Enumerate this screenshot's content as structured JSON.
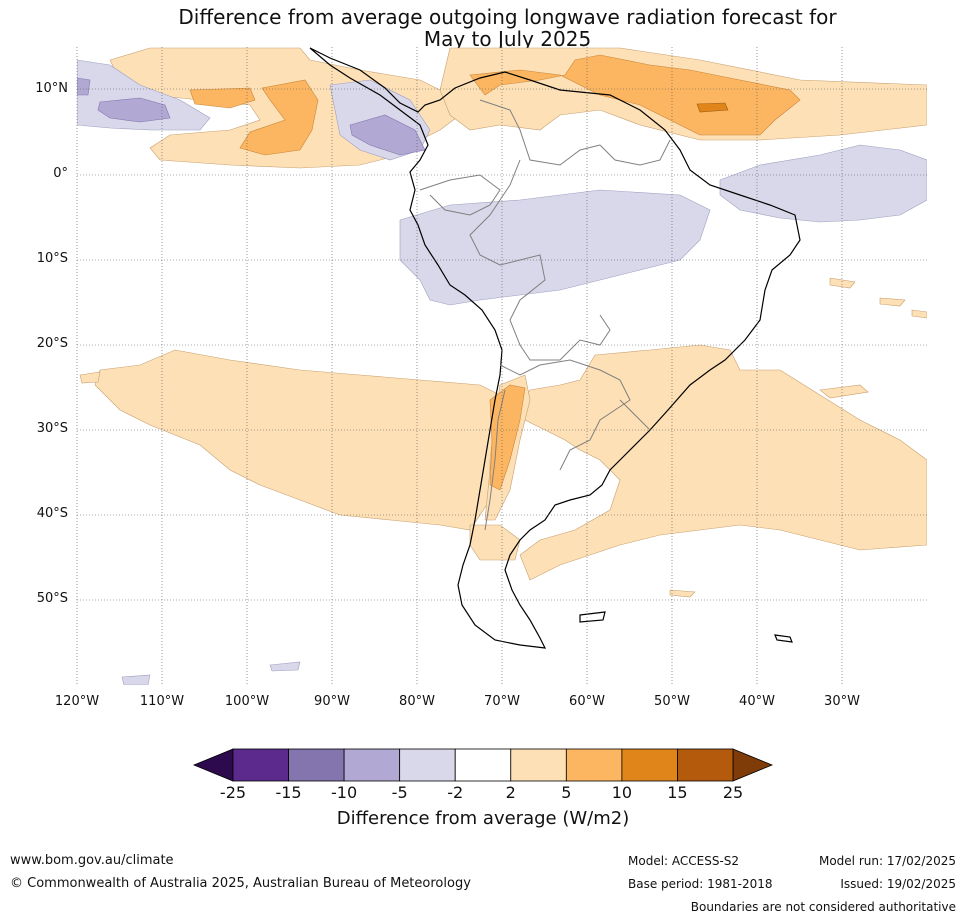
{
  "title_line1": "Difference from average outgoing longwave radiation forecast for",
  "title_line2": "May to July 2025",
  "map": {
    "lat_labels": [
      {
        "text": "10°N",
        "value": 10
      },
      {
        "text": "0°",
        "value": 0
      },
      {
        "text": "10°S",
        "value": -10
      },
      {
        "text": "20°S",
        "value": -20
      },
      {
        "text": "30°S",
        "value": -30
      },
      {
        "text": "40°S",
        "value": -40
      },
      {
        "text": "50°S",
        "value": -50
      }
    ],
    "lon_labels": [
      {
        "text": "120°W",
        "value": -120
      },
      {
        "text": "110°W",
        "value": -110
      },
      {
        "text": "100°W",
        "value": -100
      },
      {
        "text": "90°W",
        "value": -90
      },
      {
        "text": "80°W",
        "value": -80
      },
      {
        "text": "70°W",
        "value": -70
      },
      {
        "text": "60°W",
        "value": -60
      },
      {
        "text": "50°W",
        "value": -50
      },
      {
        "text": "40°W",
        "value": -40
      },
      {
        "text": "30°W",
        "value": -30
      }
    ],
    "extent": {
      "lon_min": -120,
      "lon_max": -20,
      "lat_min": -60,
      "lat_max": 15
    }
  },
  "colorbar": {
    "ticks": [
      "-25",
      "-15",
      "-10",
      "-5",
      "-2",
      "2",
      "5",
      "10",
      "15",
      "25"
    ],
    "colors": [
      "#5c2a8c",
      "#8575ae",
      "#b1a9d3",
      "#d8d8ea",
      "#ffffff",
      "#fde0b5",
      "#fcb662",
      "#e0851a",
      "#b35a0d"
    ],
    "extend_low_color": "#2d0a4e",
    "extend_high_color": "#7f3b08",
    "label": "Difference from average (W/m2)"
  },
  "footer": {
    "website": "www.bom.gov.au/climate",
    "copyright": "© Commonwealth of Australia 2025, Australian Bureau of Meteorology",
    "model": "Model: ACCESS-S2",
    "base_period": "Base period: 1981-2018",
    "model_run": "Model run: 17/02/2025",
    "issued": "Issued: 19/02/2025",
    "disclaimer": "Boundaries are not considered authoritative"
  }
}
